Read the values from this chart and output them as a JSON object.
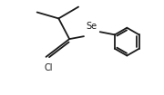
{
  "bg_color": "#ffffff",
  "line_color": "#1a1a1a",
  "line_width": 1.3,
  "text_color": "#1a1a1a",
  "Se_label": "Se",
  "Cl_label": "Cl",
  "Se_fontsize": 7.0,
  "Cl_fontsize": 7.0,
  "figsize": [
    1.8,
    1.05
  ],
  "dpi": 100,
  "xlim": [
    0,
    9
  ],
  "ylim": [
    0,
    5.25
  ]
}
